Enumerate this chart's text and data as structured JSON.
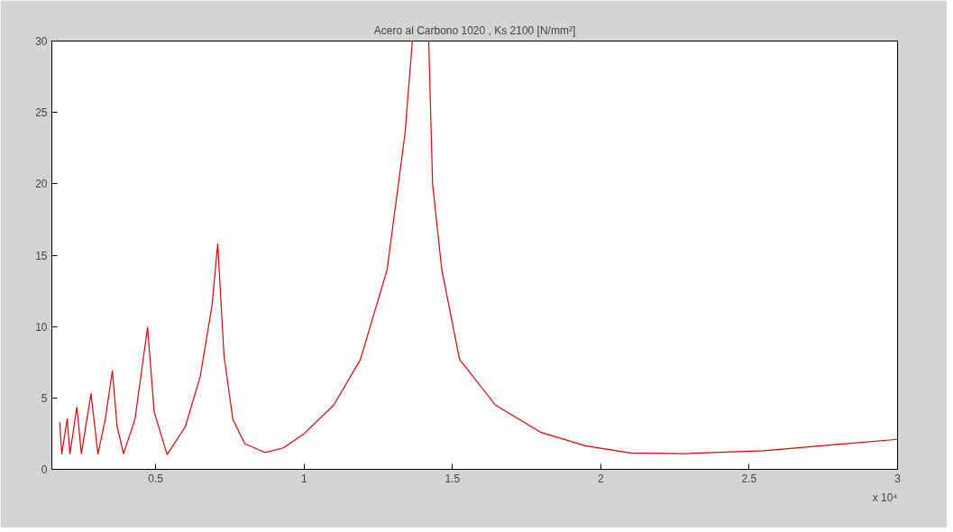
{
  "chart_data": {
    "type": "line",
    "title": "Acero al Carbono 1020 , Ks 2100 [N/mm²]",
    "annotations": [
      "x 10⁴"
    ],
    "series": [
      {
        "color": "#e00000",
        "x": [
          0.1765,
          0.1836,
          0.2018,
          0.211,
          0.2343,
          0.2495,
          0.282,
          0.3053,
          0.33,
          0.354,
          0.37,
          0.3915,
          0.43,
          0.4726,
          0.495,
          0.5385,
          0.6,
          0.65,
          0.69,
          0.709,
          0.73,
          0.76,
          0.8,
          0.868,
          0.93,
          1.0,
          1.1,
          1.19,
          1.28,
          1.34,
          1.365,
          1.39,
          1.42,
          1.433,
          1.464,
          1.524,
          1.645,
          1.797,
          1.948,
          2.1,
          2.28,
          2.55,
          2.797,
          3.0
        ],
        "values": [
          3.3,
          1.08,
          3.55,
          1.08,
          4.35,
          1.1,
          5.3,
          1.08,
          3.5,
          6.9,
          3.0,
          1.1,
          3.5,
          9.95,
          4.0,
          1.03,
          3.0,
          6.5,
          11.5,
          15.8,
          8.0,
          3.5,
          1.8,
          1.18,
          1.5,
          2.5,
          4.5,
          7.7,
          14,
          23.5,
          30,
          null,
          30,
          20,
          14,
          7.7,
          4.5,
          2.6,
          1.65,
          1.15,
          1.1,
          1.3,
          1.75,
          2.1
        ]
      }
    ],
    "xlim": [
      0.15,
      3.0
    ],
    "xticks": [
      0.5,
      1,
      1.5,
      2,
      2.5,
      3
    ],
    "ylim": [
      0,
      30
    ],
    "yticks": [
      0,
      5,
      10,
      15,
      20,
      25,
      30
    ],
    "grid": false,
    "marker": "none",
    "line_style": "solid"
  }
}
